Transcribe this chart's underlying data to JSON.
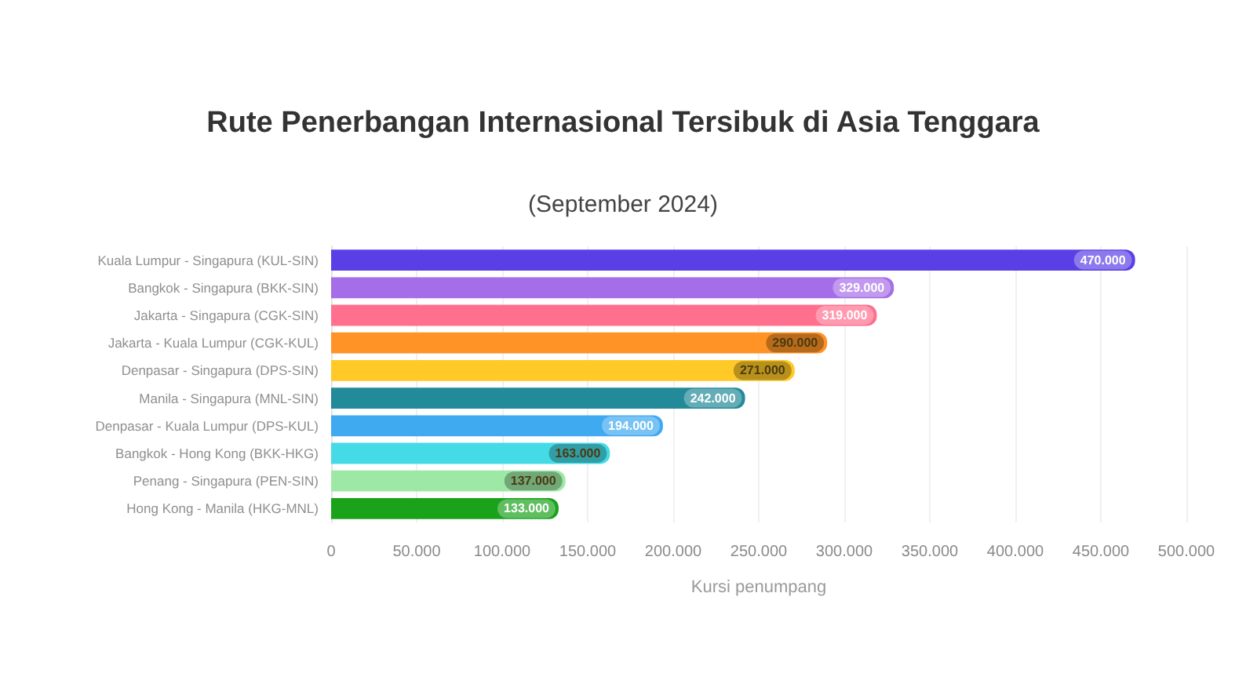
{
  "chart_data": {
    "type": "bar",
    "orientation": "horizontal",
    "title": "Rute Penerbangan Internasional Tersibuk di Asia Tenggara",
    "subtitle": "(September 2024)",
    "xlabel": "Kursi penumpang",
    "categories": [
      "Kuala Lumpur - Singapura (KUL-SIN)",
      "Bangkok - Singapura (BKK-SIN)",
      "Jakarta - Singapura (CGK-SIN)",
      "Jakarta - Kuala Lumpur (CGK-KUL)",
      "Denpasar - Singapura (DPS-SIN)",
      "Manila - Singapura (MNL-SIN)",
      "Denpasar - Kuala Lumpur (DPS-KUL)",
      "Bangkok - Hong Kong (BKK-HKG)",
      "Penang - Singapura (PEN-SIN)",
      "Hong Kong - Manila (HKG-MNL)"
    ],
    "values": [
      470000,
      329000,
      319000,
      290000,
      271000,
      242000,
      194000,
      163000,
      137000,
      133000
    ],
    "value_labels": [
      "470.000",
      "329.000",
      "319.000",
      "290.000",
      "271.000",
      "242.000",
      "194.000",
      "163.000",
      "137.000",
      "133.000"
    ],
    "colors": [
      "#5b3fe6",
      "#a66de8",
      "#ff6f8e",
      "#ff9326",
      "#ffc928",
      "#228a99",
      "#40aaf0",
      "#44dbe6",
      "#9ee8a6",
      "#1aa31a"
    ],
    "xlim": [
      0,
      500000
    ],
    "xticks": [
      0,
      {
        "value": 50000,
        "label": "50.000"
      },
      {
        "value": 100000,
        "label": "100.000"
      },
      {
        "value": 150000,
        "label": "150.000"
      },
      {
        "value": 200000,
        "label": "200.000"
      },
      {
        "value": 250000,
        "label": "250.000"
      },
      {
        "value": 300000,
        "label": "300.000"
      },
      {
        "value": 350000,
        "label": "350.000"
      },
      {
        "value": 400000,
        "label": "400.000"
      },
      {
        "value": 450000,
        "label": "450.000"
      },
      {
        "value": 500000,
        "label": "500.000"
      }
    ],
    "grid": "x"
  }
}
